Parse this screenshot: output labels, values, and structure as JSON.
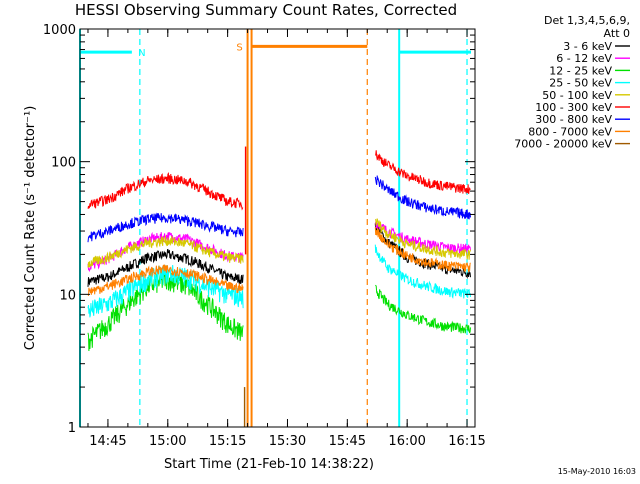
{
  "chart_data": {
    "type": "line",
    "title": "HESSI Observing Summary Count Rates, Corrected",
    "xlabel": "Start Time (21-Feb-10 14:38:22)",
    "ylabel": "Corrected Count Rate (s⁻¹ detector⁻¹)",
    "yscale": "log",
    "ylim": [
      1,
      1000
    ],
    "xlim": [
      "14:38",
      "16:17"
    ],
    "x_ticks": [
      "14:45",
      "15:00",
      "15:15",
      "15:30",
      "15:45",
      "16:00",
      "16:15"
    ],
    "y_ticks": [
      "1",
      "10",
      "100",
      "1000"
    ],
    "legend_header": [
      "Det 1,3,4,5,6,9,",
      "Att 0"
    ],
    "legend_position": "right",
    "timestamp": "15-May-2010 16:03",
    "data_gap": [
      "15:20",
      "15:51"
    ],
    "series": [
      {
        "name": "3 - 6 keV",
        "color": "#000000",
        "pre": [
          [
            "14:40",
            12.5
          ],
          [
            "14:45",
            13.5
          ],
          [
            "14:50",
            16
          ],
          [
            "14:55",
            19
          ],
          [
            "15:00",
            20
          ],
          [
            "15:05",
            18.5
          ],
          [
            "15:10",
            16
          ],
          [
            "15:15",
            13.5
          ],
          [
            "15:19",
            13
          ]
        ],
        "post": [
          [
            "15:52",
            33
          ],
          [
            "15:55",
            25
          ],
          [
            "16:00",
            19
          ],
          [
            "16:05",
            17
          ],
          [
            "16:10",
            15.5
          ],
          [
            "16:16",
            14.5
          ]
        ]
      },
      {
        "name": "6 - 12 keV",
        "color": "#ff00ff",
        "pre": [
          [
            "14:40",
            16
          ],
          [
            "14:45",
            18.5
          ],
          [
            "14:50",
            22.5
          ],
          [
            "14:55",
            26
          ],
          [
            "15:00",
            27.5
          ],
          [
            "15:05",
            26
          ],
          [
            "15:10",
            22.5
          ],
          [
            "15:15",
            19.5
          ],
          [
            "15:19",
            19
          ]
        ],
        "post": [
          [
            "15:52",
            35
          ],
          [
            "15:55",
            30
          ],
          [
            "16:00",
            26
          ],
          [
            "16:05",
            24
          ],
          [
            "16:10",
            22.5
          ],
          [
            "16:16",
            22
          ]
        ]
      },
      {
        "name": "12 - 25 keV",
        "color": "#00e000",
        "pre": [
          [
            "14:40",
            4.5
          ],
          [
            "14:45",
            6
          ],
          [
            "14:50",
            8.5
          ],
          [
            "14:55",
            11.5
          ],
          [
            "15:00",
            13
          ],
          [
            "15:05",
            11.5
          ],
          [
            "15:10",
            8.5
          ],
          [
            "15:15",
            6
          ],
          [
            "15:19",
            5
          ]
        ],
        "post": [
          [
            "15:52",
            11
          ],
          [
            "15:55",
            8.5
          ],
          [
            "16:00",
            7
          ],
          [
            "16:05",
            6.2
          ],
          [
            "16:10",
            5.7
          ],
          [
            "16:16",
            5.5
          ]
        ]
      },
      {
        "name": "25 - 50 keV",
        "color": "#00ffff",
        "pre": [
          [
            "14:40",
            7.5
          ],
          [
            "14:45",
            8.5
          ],
          [
            "14:50",
            10.5
          ],
          [
            "14:55",
            13
          ],
          [
            "15:00",
            14.5
          ],
          [
            "15:05",
            13.5
          ],
          [
            "15:10",
            11.5
          ],
          [
            "15:15",
            10
          ],
          [
            "15:19",
            9.5
          ]
        ],
        "post": [
          [
            "15:52",
            22
          ],
          [
            "15:55",
            16
          ],
          [
            "16:00",
            13
          ],
          [
            "16:05",
            11.5
          ],
          [
            "16:10",
            10.5
          ],
          [
            "16:16",
            10
          ]
        ]
      },
      {
        "name": "50 - 100 keV",
        "color": "#d6c800",
        "pre": [
          [
            "14:40",
            17
          ],
          [
            "14:45",
            19
          ],
          [
            "14:50",
            22
          ],
          [
            "14:55",
            24.5
          ],
          [
            "15:00",
            25.5
          ],
          [
            "15:05",
            24
          ],
          [
            "15:10",
            21
          ],
          [
            "15:15",
            19
          ],
          [
            "15:19",
            18.5
          ]
        ],
        "post": [
          [
            "15:52",
            36
          ],
          [
            "15:55",
            29
          ],
          [
            "16:00",
            24
          ],
          [
            "16:05",
            22
          ],
          [
            "16:10",
            20.5
          ],
          [
            "16:16",
            20
          ]
        ]
      },
      {
        "name": "100 - 300 keV",
        "color": "#ff0000",
        "pre": [
          [
            "14:40",
            47
          ],
          [
            "14:45",
            52
          ],
          [
            "14:50",
            63
          ],
          [
            "14:55",
            72
          ],
          [
            "15:00",
            75
          ],
          [
            "15:05",
            71
          ],
          [
            "15:10",
            60
          ],
          [
            "15:15",
            50
          ],
          [
            "15:19",
            48
          ]
        ],
        "post": [
          [
            "15:52",
            115
          ],
          [
            "15:55",
            95
          ],
          [
            "16:00",
            78
          ],
          [
            "16:05",
            70
          ],
          [
            "16:10",
            65
          ],
          [
            "16:16",
            62
          ]
        ]
      },
      {
        "name": "300 - 800 keV",
        "color": "#0000ff",
        "pre": [
          [
            "14:40",
            27
          ],
          [
            "14:45",
            30
          ],
          [
            "14:50",
            34
          ],
          [
            "14:55",
            37
          ],
          [
            "15:00",
            38
          ],
          [
            "15:05",
            36
          ],
          [
            "15:10",
            33
          ],
          [
            "15:15",
            30
          ],
          [
            "15:19",
            29
          ]
        ],
        "post": [
          [
            "15:52",
            75
          ],
          [
            "15:55",
            62
          ],
          [
            "16:00",
            50
          ],
          [
            "16:05",
            45
          ],
          [
            "16:10",
            42
          ],
          [
            "16:16",
            40
          ]
        ]
      },
      {
        "name": "800 - 7000 keV",
        "color": "#ff8000",
        "pre": [
          [
            "14:40",
            10.5
          ],
          [
            "14:45",
            11.5
          ],
          [
            "14:50",
            13
          ],
          [
            "14:55",
            14.8
          ],
          [
            "15:00",
            15.5
          ],
          [
            "15:05",
            14.5
          ],
          [
            "15:10",
            13
          ],
          [
            "15:15",
            11.5
          ],
          [
            "15:19",
            11
          ]
        ],
        "post": [
          [
            "15:52",
            31
          ],
          [
            "15:55",
            24
          ],
          [
            "16:00",
            19.5
          ],
          [
            "16:05",
            17.5
          ],
          [
            "16:10",
            16.5
          ],
          [
            "16:16",
            16
          ]
        ]
      },
      {
        "name": "7000 - 20000 keV",
        "color": "#a05a00",
        "pre": [],
        "post": []
      }
    ],
    "flag_bars": [
      {
        "label": "N",
        "color": "#00ffff",
        "segments": [
          [
            "14:38",
            "14:51"
          ],
          [
            "15:58",
            "16:16"
          ]
        ],
        "level": 670
      },
      {
        "label": "S",
        "color": "#ff8000",
        "segments": [
          [
            "15:21",
            "15:50"
          ]
        ],
        "level": 740
      }
    ],
    "solid_lines": [
      {
        "time": "14:38",
        "color": "#00ffff"
      },
      {
        "time": "15:58",
        "color": "#00ffff"
      },
      {
        "time": "15:20",
        "color": "#ff8000"
      },
      {
        "time": "15:21",
        "color": "#ff8000"
      }
    ],
    "dashed_lines": [
      {
        "time": "14:53",
        "color": "#00ffff"
      },
      {
        "time": "16:15",
        "color": "#00ffff"
      },
      {
        "time": "15:50",
        "color": "#ff8000"
      }
    ]
  }
}
